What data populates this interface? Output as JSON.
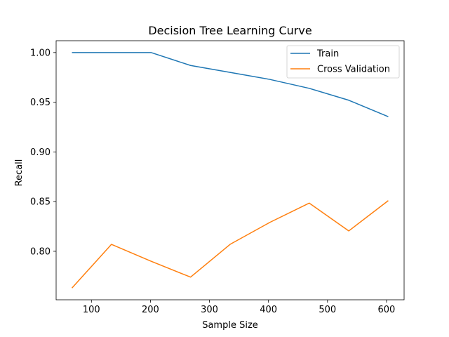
{
  "chart_data": {
    "type": "line",
    "title": "Decision Tree Learning Curve",
    "xlabel": "Sample Size",
    "ylabel": "Recall",
    "x": [
      67,
      134,
      201,
      268,
      335,
      402,
      469,
      536,
      603
    ],
    "series": [
      {
        "name": "Train",
        "color": "#1f77b4",
        "values": [
          1.0,
          1.0,
          1.0,
          0.987,
          0.98,
          0.973,
          0.964,
          0.952,
          0.9355
        ]
      },
      {
        "name": "Cross Validation",
        "color": "#ff7f0e",
        "values": [
          0.763,
          0.807,
          0.79,
          0.774,
          0.807,
          0.829,
          0.8485,
          0.8205,
          0.851
        ]
      }
    ],
    "xticks": [
      100,
      200,
      300,
      400,
      500,
      600
    ],
    "yticks": [
      0.8,
      0.85,
      0.9,
      0.95,
      1.0
    ],
    "xtick_labels": [
      "100",
      "200",
      "300",
      "400",
      "500",
      "600"
    ],
    "ytick_labels": [
      "0.80",
      "0.85",
      "0.90",
      "0.95",
      "1.00"
    ],
    "xlim": [
      40.2,
      629.8
    ],
    "ylim": [
      0.7512,
      1.0119
    ],
    "grid": false,
    "legend_position": "top-right"
  }
}
